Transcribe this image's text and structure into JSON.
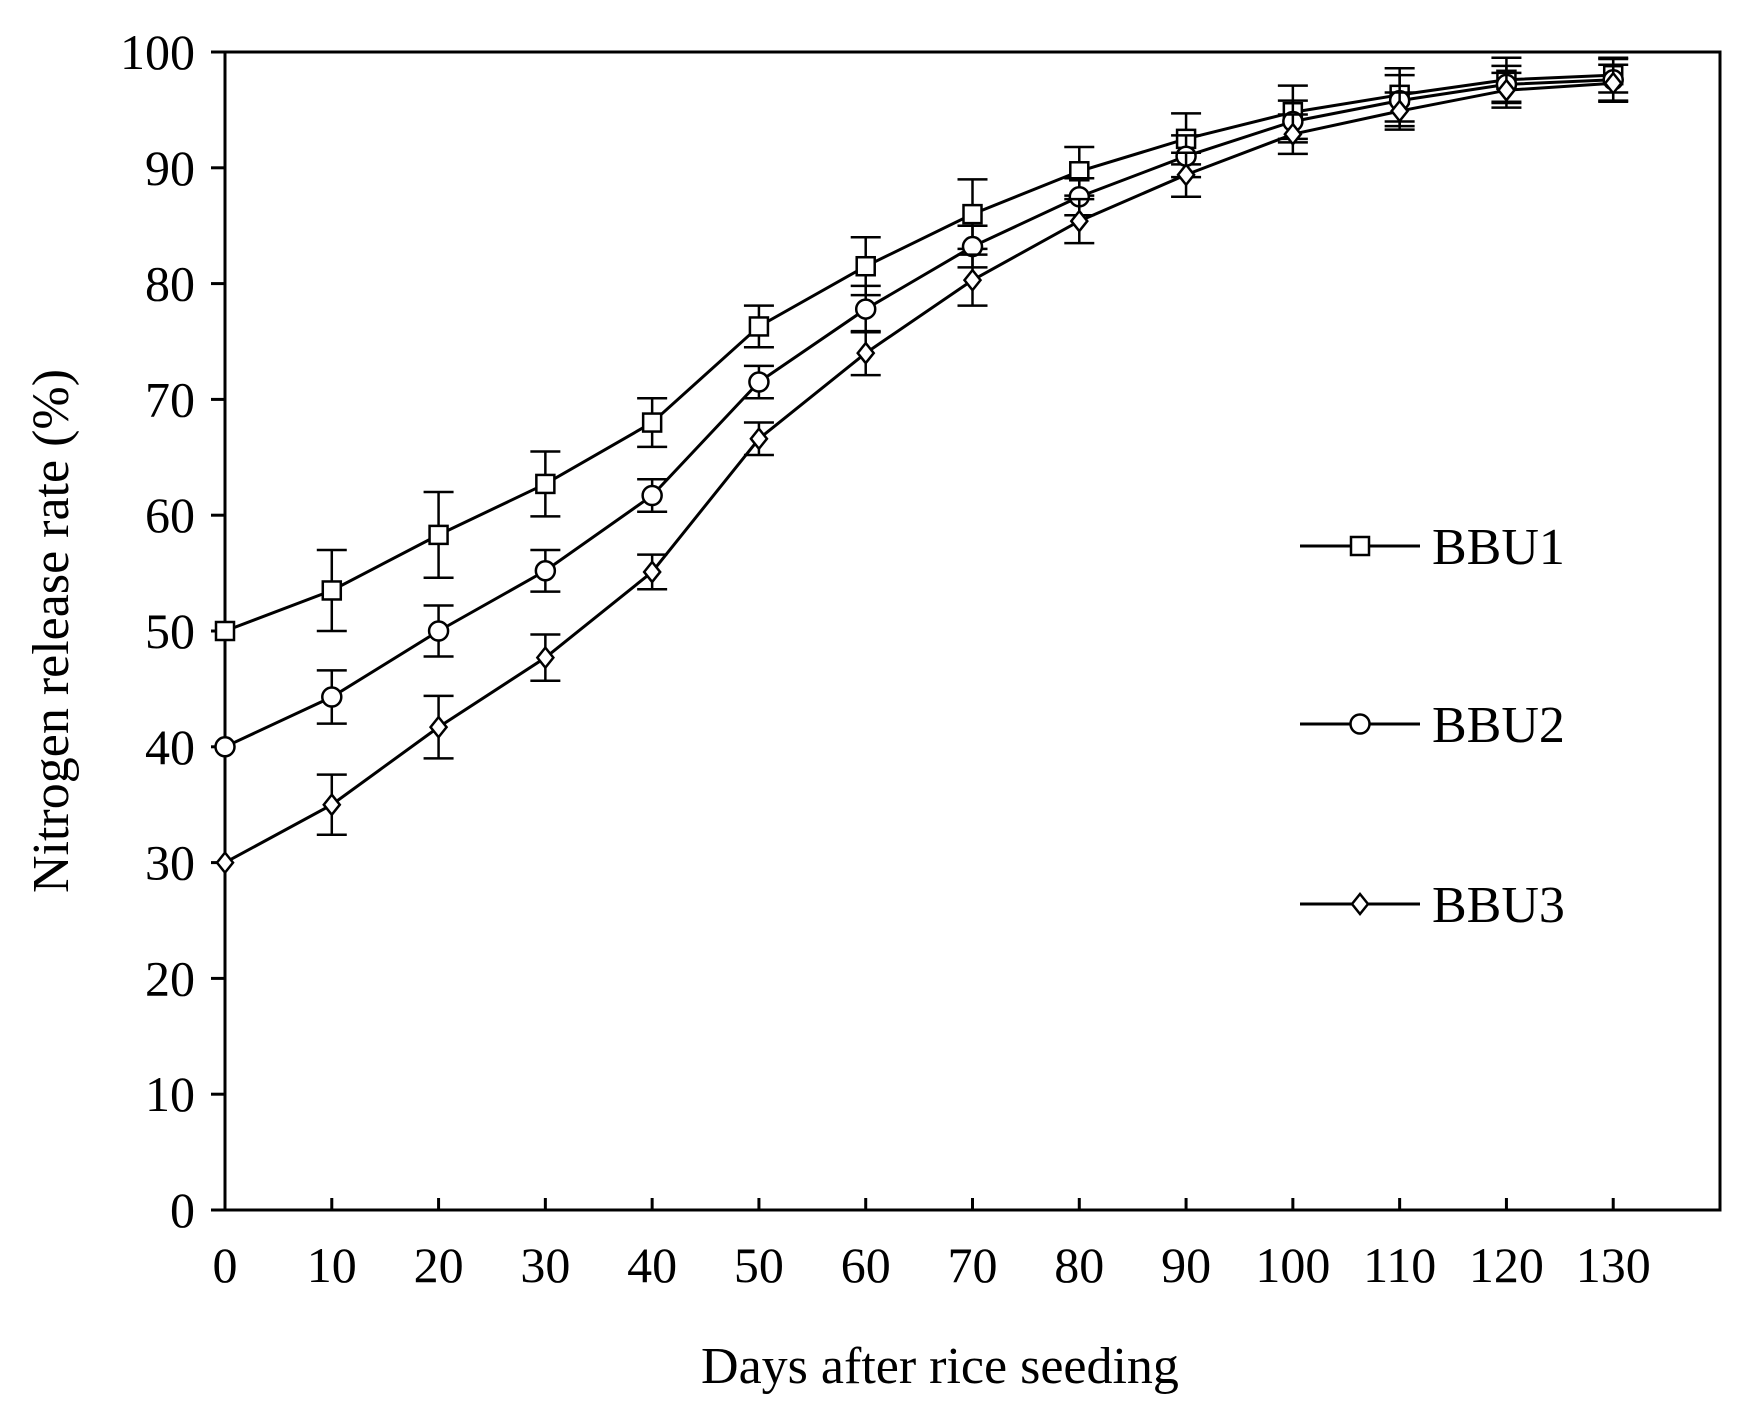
{
  "chart_data": {
    "type": "line",
    "xlabel": "Days after rice seeding",
    "ylabel": "Nitrogen release rate (%)",
    "xlim": [
      0,
      140
    ],
    "ylim": [
      0,
      100
    ],
    "x_ticks": [
      0,
      10,
      20,
      30,
      40,
      50,
      60,
      70,
      80,
      90,
      100,
      110,
      120,
      130
    ],
    "y_ticks": [
      0,
      10,
      20,
      30,
      40,
      50,
      60,
      70,
      80,
      90,
      100
    ],
    "grid": false,
    "legend_position": "right",
    "x": [
      0,
      10,
      20,
      30,
      40,
      50,
      60,
      70,
      80,
      90,
      100,
      110,
      120,
      130
    ],
    "series": [
      {
        "name": "BBU1",
        "marker": "square",
        "values": [
          50.0,
          53.5,
          58.3,
          62.7,
          68.0,
          76.3,
          81.5,
          86.0,
          89.7,
          92.5,
          94.8,
          96.3,
          97.6,
          98.0
        ],
        "errors": [
          0.0,
          3.5,
          3.7,
          2.8,
          2.1,
          1.8,
          2.5,
          3.0,
          2.1,
          2.2,
          2.3,
          2.3,
          1.9,
          1.5
        ]
      },
      {
        "name": "BBU2",
        "marker": "circle",
        "values": [
          40.0,
          44.3,
          50.0,
          55.2,
          61.7,
          71.5,
          77.8,
          83.2,
          87.5,
          91.0,
          94.0,
          95.8,
          97.2,
          97.6
        ],
        "errors": [
          0.0,
          2.3,
          2.2,
          1.8,
          1.4,
          1.4,
          2.0,
          1.8,
          1.6,
          1.8,
          1.8,
          2.2,
          1.6,
          1.8
        ]
      },
      {
        "name": "BBU3",
        "marker": "diamond",
        "values": [
          30.0,
          35.0,
          41.7,
          47.7,
          55.1,
          66.6,
          74.0,
          80.3,
          85.4,
          89.4,
          92.9,
          94.9,
          96.7,
          97.3
        ],
        "errors": [
          0.0,
          2.6,
          2.7,
          2.0,
          1.5,
          1.4,
          1.9,
          2.2,
          1.9,
          1.9,
          1.7,
          1.6,
          1.5,
          1.6
        ]
      }
    ]
  }
}
